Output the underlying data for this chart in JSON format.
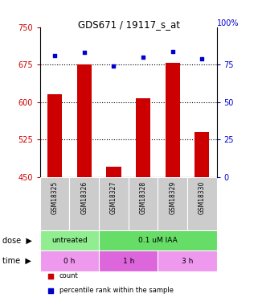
{
  "title": "GDS671 / 19117_s_at",
  "samples": [
    "GSM18325",
    "GSM18326",
    "GSM18327",
    "GSM18328",
    "GSM18329",
    "GSM18330"
  ],
  "counts": [
    615,
    676,
    470,
    607,
    678,
    540
  ],
  "percentiles": [
    81,
    83,
    74,
    80,
    84,
    79
  ],
  "ylim_left": [
    450,
    750
  ],
  "ylim_right": [
    0,
    100
  ],
  "yticks_left": [
    450,
    525,
    600,
    675,
    750
  ],
  "yticks_right": [
    0,
    25,
    50,
    75
  ],
  "grid_yticks": [
    525,
    600,
    675
  ],
  "bar_color": "#cc0000",
  "dot_color": "#0000cc",
  "grid_color": "black",
  "dose_labels": [
    {
      "label": "untreated",
      "cols": [
        0,
        1
      ],
      "color": "#90ee90"
    },
    {
      "label": "0.1 uM IAA",
      "cols": [
        2,
        3,
        4,
        5
      ],
      "color": "#66dd66"
    }
  ],
  "time_labels": [
    {
      "label": "0 h",
      "cols": [
        0,
        1
      ],
      "color": "#ee99ee"
    },
    {
      "label": "1 h",
      "cols": [
        2,
        3
      ],
      "color": "#dd66dd"
    },
    {
      "label": "3 h",
      "cols": [
        4,
        5
      ],
      "color": "#ee99ee"
    }
  ],
  "legend_items": [
    {
      "label": "count",
      "color": "#cc0000"
    },
    {
      "label": "percentile rank within the sample",
      "color": "#0000cc"
    }
  ],
  "tick_color_left": "#cc0000",
  "tick_color_right": "#0000cc",
  "sample_box_color": "#cccccc",
  "right_top_label": "100%"
}
